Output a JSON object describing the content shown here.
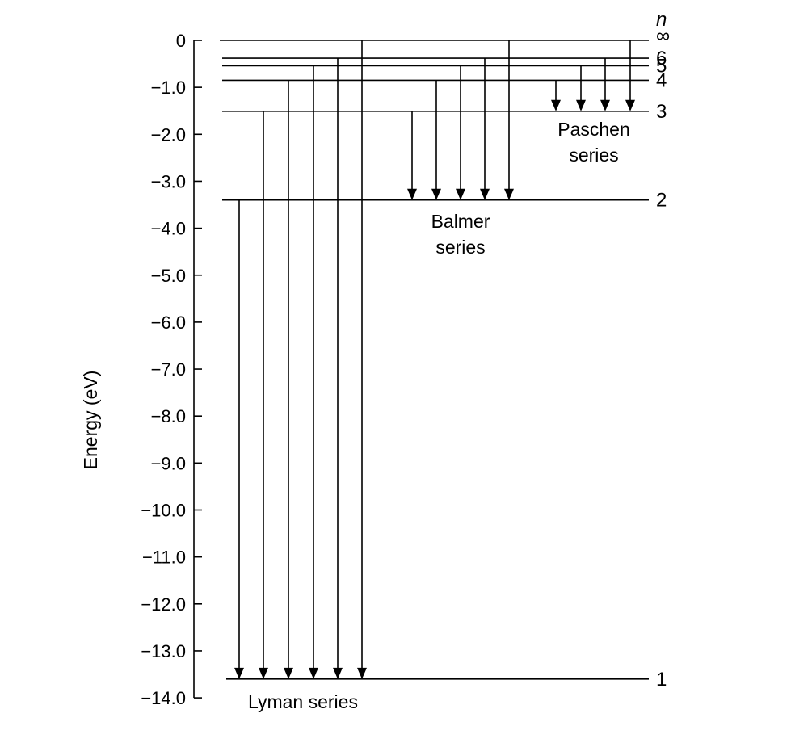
{
  "axis": {
    "title": "Energy (eV)",
    "ticks": [
      "0",
      "−1.0",
      "−2.0",
      "−3.0",
      "−4.0",
      "−5.0",
      "−6.0",
      "−7.0",
      "−8.0",
      "−9.0",
      "−10.0",
      "−11.0",
      "−12.0",
      "−13.0",
      "−14.0"
    ],
    "min": -14.0,
    "max": 0
  },
  "n_header": "n",
  "levels": [
    {
      "n": "∞",
      "energy": 0.0
    },
    {
      "n": "6",
      "energy": -0.38
    },
    {
      "n": "5",
      "energy": -0.54
    },
    {
      "n": "4",
      "energy": -0.85
    },
    {
      "n": "3",
      "energy": -1.51
    },
    {
      "n": "2",
      "energy": -3.4
    },
    {
      "n": "1",
      "energy": -13.6
    }
  ],
  "series": [
    {
      "name_lines": [
        "Lyman series"
      ],
      "to": -13.6,
      "from": [
        -3.4,
        -1.51,
        -0.85,
        -0.54,
        -0.38,
        0.0
      ]
    },
    {
      "name_lines": [
        "Balmer",
        "series"
      ],
      "to": -3.4,
      "from": [
        -1.51,
        -0.85,
        -0.54,
        -0.38,
        0.0
      ]
    },
    {
      "name_lines": [
        "Paschen",
        "series"
      ],
      "to": -1.51,
      "from": [
        -0.85,
        -0.54,
        -0.38,
        0.0
      ]
    }
  ]
}
